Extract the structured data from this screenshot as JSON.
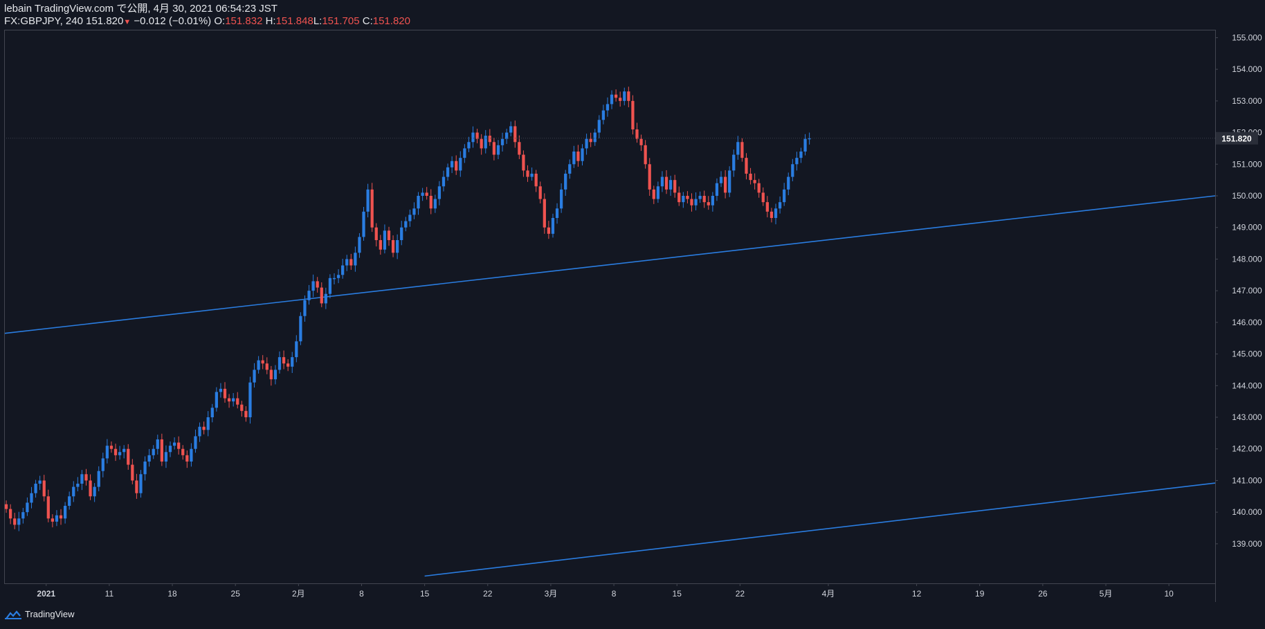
{
  "header": {
    "publish_line": "lebain TradingView.com で公開, 4月 30, 2021 06:54:23 JST",
    "symbol": "FX:GBPJPY, 240",
    "last": "151.820",
    "change": "−0.012 (−0.01%)",
    "o_label": "O:",
    "o_value": "151.832",
    "h_label": "H:",
    "h_value": "151.848",
    "l_label": "L:",
    "l_value": "151.705",
    "c_label": "C:",
    "c_value": "151.820"
  },
  "footer": {
    "brand": "TradingView"
  },
  "colors": {
    "background": "#131722",
    "up": "#2a7de1",
    "down": "#ef5350",
    "trendline": "#2a7de1",
    "axis_text": "#d1d4dc",
    "grid": "#2a2e39"
  },
  "chart_data": {
    "type": "candlestick",
    "symbol": "GBPJPY",
    "timeframe": "240",
    "ylim": [
      137.75,
      155.25
    ],
    "y_ticks": [
      139.0,
      140.0,
      141.0,
      142.0,
      143.0,
      144.0,
      145.0,
      146.0,
      147.0,
      148.0,
      149.0,
      150.0,
      151.0,
      152.0,
      153.0,
      154.0,
      155.0
    ],
    "y_tick_labels": [
      "139.000",
      "140.000",
      "141.000",
      "142.000",
      "143.000",
      "144.000",
      "145.000",
      "146.000",
      "147.000",
      "148.000",
      "149.000",
      "150.000",
      "151.000",
      "152.000",
      "153.000",
      "154.000",
      "155.000"
    ],
    "x_ticks": [
      {
        "label": "2021",
        "bar": 10
      },
      {
        "label": "11",
        "bar": 25
      },
      {
        "label": "18",
        "bar": 40
      },
      {
        "label": "25",
        "bar": 55
      },
      {
        "label": "2月",
        "bar": 70
      },
      {
        "label": "8",
        "bar": 85
      },
      {
        "label": "15",
        "bar": 100
      },
      {
        "label": "22",
        "bar": 115
      },
      {
        "label": "3月",
        "bar": 130
      },
      {
        "label": "8",
        "bar": 145
      },
      {
        "label": "15",
        "bar": 160
      },
      {
        "label": "22",
        "bar": 175
      },
      {
        "label": "4月",
        "bar": 196
      },
      {
        "label": "12",
        "bar": 217
      },
      {
        "label": "19",
        "bar": 232
      },
      {
        "label": "26",
        "bar": 247
      },
      {
        "label": "5月",
        "bar": 262
      },
      {
        "label": "10",
        "bar": 277
      }
    ],
    "total_bars": 288,
    "last_price": 151.82,
    "last_price_label": "151.820",
    "closes": [
      140.1,
      139.8,
      139.6,
      139.8,
      140.0,
      140.3,
      140.6,
      140.9,
      141.0,
      140.5,
      139.8,
      139.7,
      139.9,
      139.8,
      140.2,
      140.5,
      140.8,
      140.9,
      141.2,
      141.0,
      140.5,
      140.8,
      141.3,
      141.7,
      142.1,
      142.0,
      141.8,
      141.9,
      142.0,
      141.5,
      141.0,
      140.6,
      141.2,
      141.6,
      141.8,
      142.0,
      142.3,
      141.6,
      141.9,
      142.1,
      142.2,
      142.0,
      141.8,
      141.6,
      142.0,
      142.4,
      142.7,
      142.6,
      143.0,
      143.3,
      143.8,
      143.9,
      143.6,
      143.5,
      143.6,
      143.4,
      143.2,
      143.0,
      144.1,
      144.5,
      144.8,
      144.7,
      144.5,
      144.2,
      144.5,
      144.9,
      144.7,
      144.6,
      144.9,
      145.4,
      146.2,
      146.7,
      147.0,
      147.3,
      147.1,
      146.6,
      146.9,
      147.4,
      147.4,
      147.5,
      147.8,
      148.0,
      147.8,
      148.2,
      148.7,
      149.5,
      150.2,
      149.0,
      148.6,
      148.3,
      148.9,
      148.6,
      148.2,
      148.6,
      149.0,
      149.2,
      149.4,
      149.6,
      150.0,
      150.1,
      150.0,
      149.6,
      149.9,
      150.3,
      150.6,
      150.9,
      151.1,
      150.8,
      151.2,
      151.5,
      151.7,
      152.0,
      151.8,
      151.5,
      151.9,
      151.7,
      151.3,
      151.6,
      151.8,
      152.0,
      152.2,
      151.7,
      151.3,
      150.8,
      150.6,
      150.7,
      150.3,
      149.9,
      149.0,
      148.8,
      149.3,
      149.6,
      150.2,
      150.7,
      151.0,
      151.4,
      151.1,
      151.5,
      151.8,
      151.7,
      152.0,
      152.4,
      152.7,
      152.9,
      153.2,
      153.1,
      153.0,
      153.3,
      153.0,
      152.1,
      151.8,
      151.6,
      151.0,
      150.2,
      149.9,
      150.3,
      150.6,
      150.2,
      150.5,
      150.1,
      149.8,
      150.0,
      149.9,
      149.7,
      149.9,
      150.0,
      149.8,
      149.7,
      150.0,
      150.4,
      150.6,
      150.1,
      150.8,
      151.3,
      151.7,
      151.2,
      150.7,
      150.5,
      150.4,
      150.1,
      149.8,
      149.5,
      149.3,
      149.6,
      149.8,
      150.2,
      150.6,
      151.0,
      151.2,
      151.4,
      151.8,
      151.82
    ],
    "trendlines": [
      {
        "name": "upper",
        "points": [
          [
            0,
            145.65
          ],
          [
            288,
            150.0
          ]
        ]
      },
      {
        "name": "lower",
        "points": [
          [
            100,
            137.98
          ],
          [
            288,
            140.92
          ]
        ]
      }
    ]
  }
}
